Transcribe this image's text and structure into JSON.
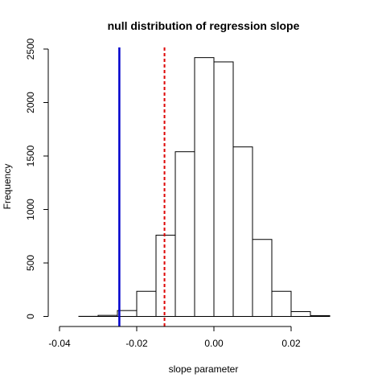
{
  "chart_data": {
    "type": "bar",
    "title": "null distribution of regression slope",
    "xlabel": "slope parameter",
    "ylabel": "Frequency",
    "xlim": [
      -0.04,
      0.035
    ],
    "ylim": [
      0,
      2500
    ],
    "x_ticks": [
      -0.04,
      -0.02,
      0.0,
      0.02
    ],
    "x_tick_labels": [
      "-0.04",
      "-0.02",
      "0.00",
      "0.02"
    ],
    "y_ticks": [
      0,
      500,
      1000,
      1500,
      2000,
      2500
    ],
    "y_tick_labels": [
      "0",
      "500",
      "1000",
      "1500",
      "2000",
      "2500"
    ],
    "bin_width": 0.005,
    "bin_edges": [
      -0.04,
      -0.035,
      -0.03,
      -0.025,
      -0.02,
      -0.015,
      -0.01,
      -0.005,
      0.0,
      0.005,
      0.01,
      0.015,
      0.02,
      0.025,
      0.03,
      0.035
    ],
    "values": [
      0,
      1,
      10,
      55,
      235,
      760,
      1540,
      2420,
      2380,
      1585,
      720,
      235,
      45,
      8,
      0
    ],
    "grid": false,
    "reference_lines": [
      {
        "x": -0.0245,
        "color": "#0000cc",
        "style": "solid"
      },
      {
        "x": -0.0128,
        "color": "#dd0000",
        "style": "dotted"
      }
    ]
  }
}
